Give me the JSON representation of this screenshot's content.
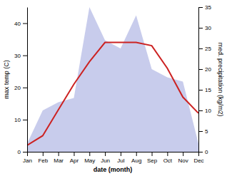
{
  "chart_data": {
    "type": "line",
    "categories": [
      "Jan",
      "Feb",
      "Mar",
      "Apr",
      "May",
      "Jun",
      "Jul",
      "Aug",
      "Sep",
      "Oct",
      "Nov",
      "Dec"
    ],
    "xlabel": "date (month)",
    "ylabel": "max temp (C)",
    "y2label": "med. precipitation (kg/m2)",
    "series": [
      {
        "type": "area",
        "axis": "y2",
        "color": "#c8ccec",
        "values": [
          2,
          10,
          12,
          13,
          35,
          27,
          25,
          33,
          20,
          18,
          17,
          2
        ]
      },
      {
        "type": "line",
        "color": "#cc2222",
        "values": [
          2,
          5,
          13,
          21,
          28,
          34,
          34,
          34,
          33,
          26,
          17,
          12
        ]
      }
    ],
    "ylim": [
      0,
      45
    ],
    "yticks": [
      0,
      10,
      20,
      30,
      40
    ],
    "y2lim": [
      0,
      35
    ],
    "y2ticks": [
      0,
      5,
      10,
      15,
      20,
      25,
      30,
      35
    ],
    "grid": false
  }
}
